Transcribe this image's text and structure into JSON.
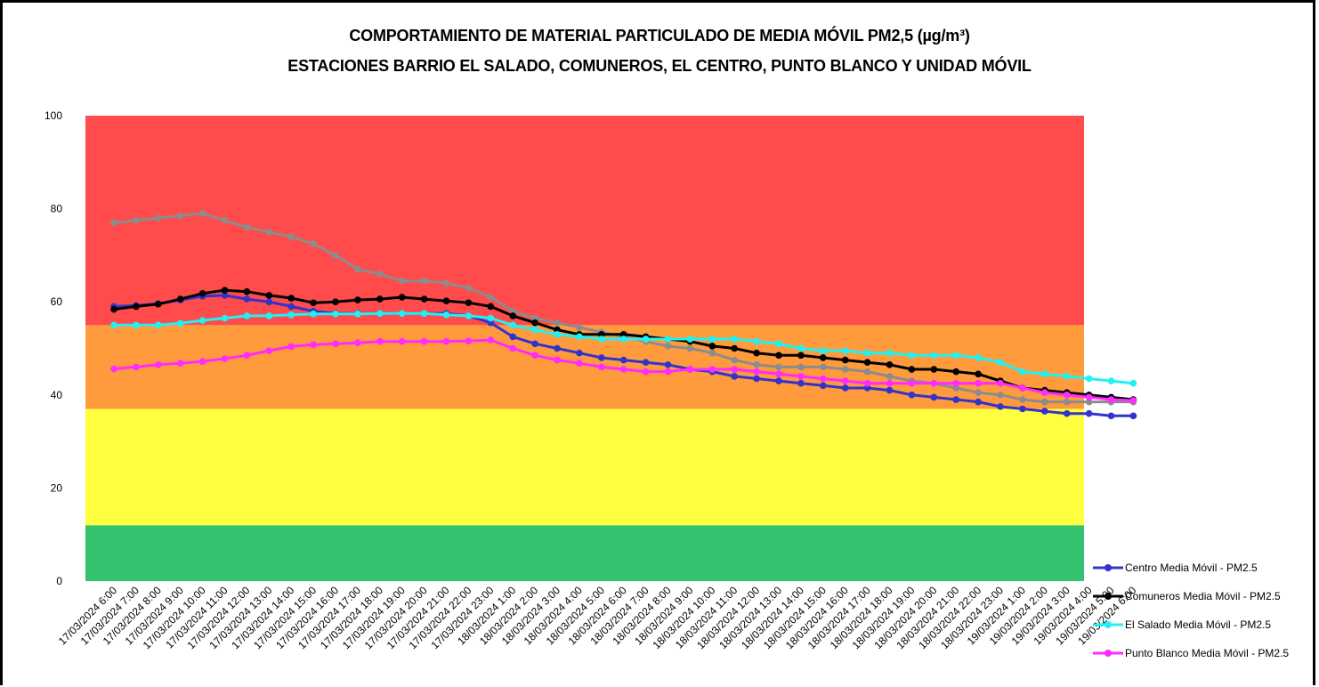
{
  "chart_data": {
    "type": "line",
    "title": "COMPORTAMIENTO DE MATERIAL PARTICULADO DE MEDIA MÓVIL PM2,5 (µg/m³)",
    "subtitle": "ESTACIONES BARRIO EL SALADO, COMUNEROS, EL CENTRO, PUNTO BLANCO Y UNIDAD MÓVIL",
    "xlabel": "",
    "ylabel": "",
    "ylim": [
      0,
      100
    ],
    "yticks": [
      0,
      20,
      40,
      60,
      80,
      100
    ],
    "legend_position": "bottom-right",
    "bands": [
      {
        "from": 0,
        "to": 12,
        "color": "#35C26F"
      },
      {
        "from": 12,
        "to": 37,
        "color": "#FFFF40"
      },
      {
        "from": 37,
        "to": 55,
        "color": "#FF9B3D"
      },
      {
        "from": 55,
        "to": 100,
        "color": "#FF4B4B"
      }
    ],
    "x": [
      "17/03/2024 6:00",
      "17/03/2024 7:00",
      "17/03/2024 8:00",
      "17/03/2024 9:00",
      "17/03/2024 10:00",
      "17/03/2024 11:00",
      "17/03/2024 12:00",
      "17/03/2024 13:00",
      "17/03/2024 14:00",
      "17/03/2024 15:00",
      "17/03/2024 16:00",
      "17/03/2024 17:00",
      "17/03/2024 18:00",
      "17/03/2024 19:00",
      "17/03/2024 20:00",
      "17/03/2024 21:00",
      "17/03/2024 22:00",
      "17/03/2024 23:00",
      "18/03/2024 1:00",
      "18/03/2024 2:00",
      "18/03/2024 3:00",
      "18/03/2024 4:00",
      "18/03/2024 5:00",
      "18/03/2024 6:00",
      "18/03/2024 7:00",
      "18/03/2024 8:00",
      "18/03/2024 9:00",
      "18/03/2024 10:00",
      "18/03/2024 11:00",
      "18/03/2024 12:00",
      "18/03/2024 13:00",
      "18/03/2024 14:00",
      "18/03/2024 15:00",
      "18/03/2024 16:00",
      "18/03/2024 17:00",
      "18/03/2024 18:00",
      "18/03/2024 19:00",
      "18/03/2024 20:00",
      "18/03/2024 21:00",
      "18/03/2024 22:00",
      "18/03/2024 23:00",
      "19/03/2024 1:00",
      "19/03/2024 2:00",
      "19/03/2024 3:00",
      "19/03/2024 4:00",
      "19/03/2024 5:00",
      "19/03/2024 6:00"
    ],
    "series": [
      {
        "color": "#8C8C8C",
        "in_legend": false,
        "values": [
          77,
          77.5,
          78,
          78.5,
          79,
          77.5,
          76,
          75,
          74,
          72.5,
          70,
          67,
          66,
          64.5,
          64.5,
          64,
          63,
          61,
          58,
          56.5,
          55.5,
          54.5,
          53.5,
          52.5,
          51.5,
          50.5,
          50,
          49,
          47.5,
          46.5,
          46,
          46,
          46,
          45.5,
          45,
          44,
          43,
          42.5,
          41.5,
          40.5,
          40,
          39,
          38.5,
          38.5,
          38.5,
          38.5,
          38.5
        ]
      },
      {
        "name": "Centro Media Móvil - PM2.5",
        "color": "#3333CC",
        "in_legend": true,
        "values": [
          59,
          59.2,
          59.6,
          60.4,
          61.2,
          61.4,
          60.6,
          60,
          59,
          58,
          57.5,
          57.5,
          57.5,
          57.5,
          57.5,
          57.5,
          57,
          55.5,
          52.5,
          51,
          50,
          49,
          48,
          47.5,
          47,
          46.5,
          45.5,
          45,
          44,
          43.5,
          43,
          42.5,
          42,
          41.5,
          41.5,
          41,
          40,
          39.5,
          39,
          38.5,
          37.5,
          37,
          36.5,
          36,
          36,
          35.5,
          35.5
        ]
      },
      {
        "name": "Comuneros Media Móvil - PM2.5",
        "color": "#000000",
        "in_legend": true,
        "values": [
          58.4,
          59,
          59.5,
          60.6,
          61.8,
          62.5,
          62.2,
          61.4,
          60.8,
          59.8,
          60,
          60.4,
          60.6,
          61,
          60.6,
          60.2,
          59.8,
          59,
          57,
          55.5,
          54,
          53,
          53,
          53,
          52.5,
          52,
          51.5,
          50.5,
          50,
          49,
          48.5,
          48.5,
          48,
          47.5,
          47,
          46.5,
          45.5,
          45.5,
          45,
          44.5,
          43,
          41.5,
          41,
          40.5,
          40,
          39.5,
          39
        ]
      },
      {
        "name": "El Salado Media Móvil - PM2.5",
        "color": "#1FF2F2",
        "in_legend": true,
        "values": [
          55,
          55,
          55,
          55.4,
          56,
          56.5,
          57,
          57,
          57.2,
          57.4,
          57.4,
          57.4,
          57.5,
          57.5,
          57.5,
          57.2,
          57,
          56.5,
          55,
          54,
          53,
          52.5,
          52,
          52,
          52,
          52,
          52,
          52,
          52,
          51.5,
          51,
          50,
          49.5,
          49.5,
          49,
          49,
          48.5,
          48.5,
          48.5,
          48,
          47,
          45,
          44.5,
          44,
          43.5,
          43,
          42.5
        ]
      },
      {
        "name": "Punto Blanco Media Móvil - PM2.5",
        "color": "#FF2BFF",
        "in_legend": true,
        "values": [
          45.6,
          46,
          46.5,
          46.8,
          47.2,
          47.8,
          48.5,
          49.5,
          50.4,
          50.8,
          51,
          51.2,
          51.5,
          51.5,
          51.5,
          51.5,
          51.6,
          51.8,
          50,
          48.5,
          47.5,
          46.8,
          46,
          45.5,
          45,
          45,
          45.5,
          45.5,
          45.5,
          45,
          44.5,
          44,
          43.5,
          43,
          42.5,
          42.5,
          42.5,
          42.5,
          42.5,
          42.5,
          42.5,
          41.5,
          40.5,
          40,
          39.5,
          39,
          38.8
        ]
      }
    ]
  }
}
